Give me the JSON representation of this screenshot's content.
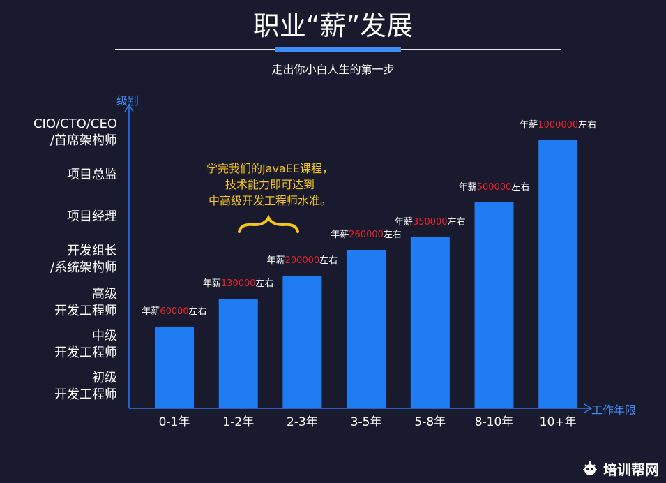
{
  "page": {
    "title": "职业“薪”发展",
    "subtitle": "走出你小白人生的第一步"
  },
  "brand": {
    "name": "培训帮网"
  },
  "chart_data": {
    "type": "bar",
    "xlabel": "工作年限",
    "ylabel": "级别",
    "categories": [
      "0-1年",
      "1-2年",
      "2-3年",
      "3-5年",
      "5-8年",
      "8-10年",
      "10+年"
    ],
    "values": [
      60000,
      130000,
      200000,
      260000,
      350000,
      500000,
      1000000
    ],
    "salary_label": {
      "prefix": "年薪",
      "suffix": "左右"
    },
    "y_levels": [
      [
        "初级",
        "开发工程师"
      ],
      [
        "中级",
        "开发工程师"
      ],
      [
        "高级",
        "开发工程师"
      ],
      [
        "开发组长",
        "/系统架构师"
      ],
      [
        "项目经理"
      ],
      [
        "项目总监"
      ],
      [
        "CIO/CTO/CEO",
        "/首席架构师"
      ]
    ],
    "annotation": {
      "lines": [
        "学完我们的JavaEE课程，",
        "技术能力即可达到",
        "中高级开发工程师水准。"
      ]
    },
    "colors": {
      "bar": "#1f7cf2",
      "value": "#e8222a",
      "text": "#ffffff",
      "axis": "#2e7be8",
      "annotation": "#f5c518"
    }
  }
}
